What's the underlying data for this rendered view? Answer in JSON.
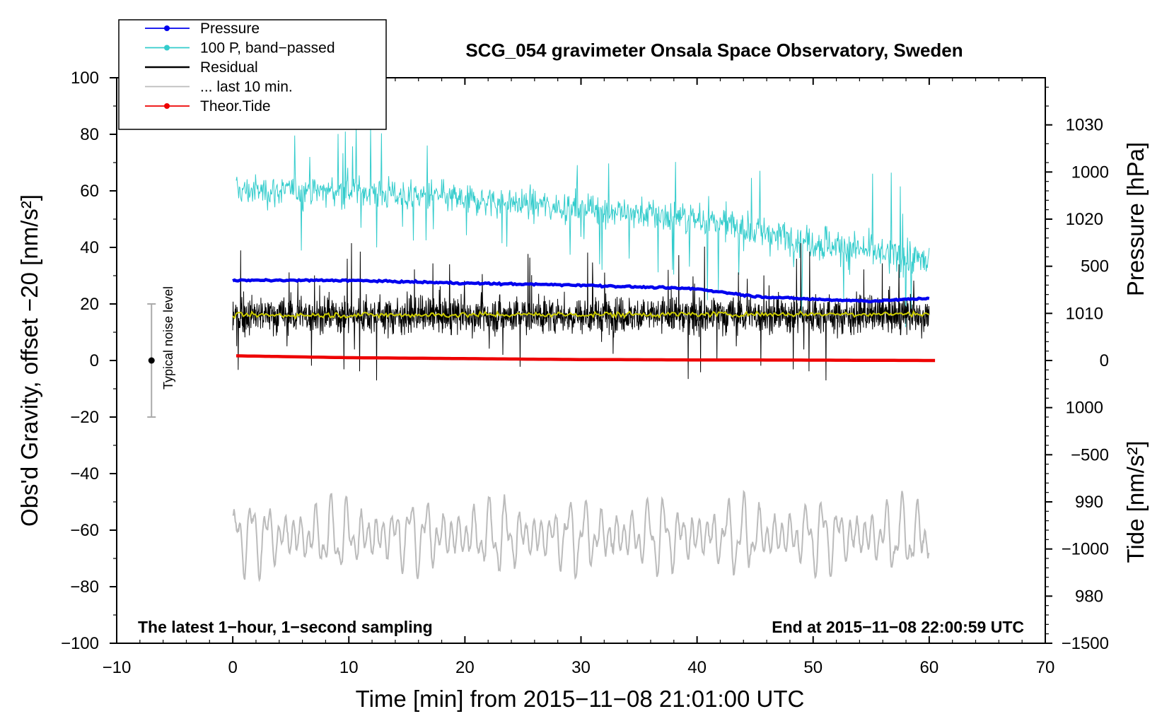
{
  "chart_data": {
    "type": "line",
    "title": "SCG_054 gravimeter Onsala Space Observatory, Sweden",
    "xlabel": "Time [min] from 2015−11−08 21:01:00 UTC",
    "ylabel": "Obs'd Gravity, offset −20 [nm/s²]",
    "y2label": "Pressure [hPa]",
    "y3label": "Tide [nm/s²]",
    "xlim": [
      -10,
      70
    ],
    "ylim": [
      -100,
      100
    ],
    "y2lim": [
      975,
      1035
    ],
    "y3lim": [
      -1500,
      1500
    ],
    "x_ticks": [
      "−10",
      "0",
      "10",
      "20",
      "30",
      "40",
      "50",
      "60",
      "70"
    ],
    "y_ticks": [
      "−100",
      "−80",
      "−60",
      "−40",
      "−20",
      "0",
      "20",
      "40",
      "60",
      "80",
      "100"
    ],
    "y2_ticks": [
      "980",
      "990",
      "1000",
      "1010",
      "1020",
      "1030"
    ],
    "y3_ticks": [
      "−1500",
      "−1000",
      "−500",
      "0",
      "500",
      "1000"
    ],
    "legend_position": "top-left",
    "legend": [
      {
        "name": "Pressure",
        "color": "#0000ee",
        "style": "line-dot"
      },
      {
        "name": "100 P, band−passed",
        "color": "#33cccc",
        "style": "line-dot"
      },
      {
        "name": "Residual",
        "color": "#000000",
        "style": "line"
      },
      {
        "name": "... last 10 min.",
        "color": "#bbbbbb",
        "style": "line"
      },
      {
        "name": "Theor.Tide",
        "color": "#ee0000",
        "style": "line-dot"
      }
    ],
    "series": [
      {
        "name": "Pressure",
        "axis": "pressure_hPa",
        "color": "#0000ee",
        "x": [
          0,
          10,
          20,
          30,
          40,
          45,
          50,
          55,
          60
        ],
        "values": [
          1013.5,
          1013.5,
          1013.2,
          1013.0,
          1012.6,
          1011.8,
          1011.5,
          1011.3,
          1011.6
        ]
      },
      {
        "name": "100 P, band−passed",
        "axis": "gravity_nm_s2",
        "color": "#33cccc",
        "x": [
          0,
          10,
          20,
          30,
          40,
          50,
          60
        ],
        "values": [
          60,
          60,
          57,
          54,
          50,
          42,
          35
        ],
        "amplitude": [
          10,
          10,
          10,
          10,
          11,
          12,
          12
        ]
      },
      {
        "name": "Residual",
        "axis": "gravity_nm_s2",
        "color": "#000000",
        "x": [
          0,
          60
        ],
        "values": [
          16,
          16
        ],
        "amplitude": [
          14,
          14
        ]
      },
      {
        "name": "Residual smoothed",
        "axis": "gravity_nm_s2",
        "color": "#cccc00",
        "x": [
          0,
          60
        ],
        "values": [
          16,
          16.5
        ]
      },
      {
        "name": "... last 10 min.",
        "axis": "gravity_nm_s2",
        "color": "#bbbbbb",
        "x": [
          0,
          60
        ],
        "values": [
          -62,
          -62
        ],
        "amplitude": [
          12,
          12
        ]
      },
      {
        "name": "Theor.Tide",
        "axis": "tide_nm_s2",
        "color": "#ee0000",
        "x": [
          0,
          10,
          20,
          30,
          40,
          50,
          60
        ],
        "values": [
          25,
          15,
          10,
          5,
          3,
          2,
          0
        ]
      }
    ],
    "noise_bar": {
      "x": -7,
      "center": 0,
      "low": -20,
      "high": 20,
      "label": "Typical noise level"
    },
    "annotations": {
      "bottom_left": "The latest 1−hour, 1−second sampling",
      "bottom_right": "End at 2015−11−08 22:00:59 UTC"
    }
  }
}
